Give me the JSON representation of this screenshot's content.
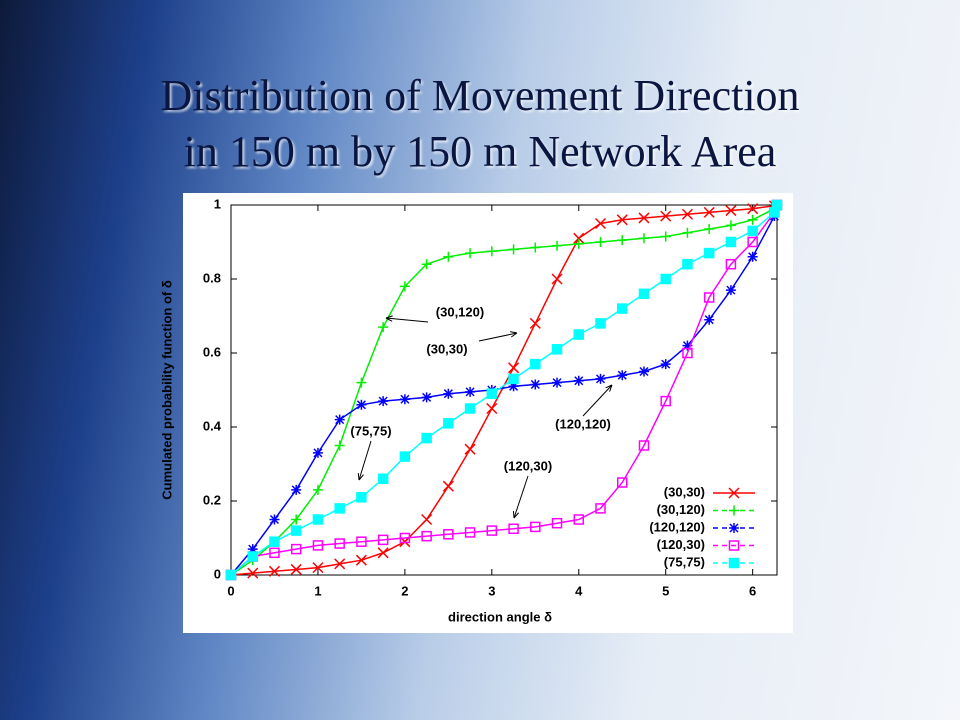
{
  "chart_data": {
    "type": "line",
    "title_lines": [
      "Distribution of Movement Direction",
      "in 150 m by 150 m Network Area"
    ],
    "x_label": "direction angle δ",
    "y_label": "Cumulated probability function of δ",
    "x": [
      0,
      0.25,
      0.5,
      0.75,
      1,
      1.25,
      1.5,
      1.75,
      2,
      2.25,
      2.5,
      2.75,
      3,
      3.25,
      3.5,
      3.75,
      4,
      4.25,
      4.5,
      4.75,
      5,
      5.25,
      5.5,
      5.75,
      6,
      6.25,
      6.28
    ],
    "xlim": [
      0,
      6.28
    ],
    "xticks": [
      0,
      1,
      2,
      3,
      4,
      5,
      6
    ],
    "ylim": [
      0,
      1
    ],
    "yticks": [
      0,
      0.2,
      0.4,
      0.6,
      0.8,
      1
    ],
    "legend": "lower right",
    "series": [
      {
        "name": "(30,30)",
        "color": "#ff0000",
        "marker": "x",
        "values": [
          0,
          0.005,
          0.01,
          0.015,
          0.02,
          0.03,
          0.04,
          0.06,
          0.09,
          0.15,
          0.24,
          0.34,
          0.45,
          0.56,
          0.68,
          0.8,
          0.91,
          0.95,
          0.96,
          0.965,
          0.97,
          0.975,
          0.98,
          0.985,
          0.99,
          0.998,
          1
        ]
      },
      {
        "name": "(30,120)",
        "color": "#00ee00",
        "marker": "plus",
        "values": [
          0,
          0.04,
          0.09,
          0.15,
          0.23,
          0.35,
          0.52,
          0.67,
          0.78,
          0.84,
          0.86,
          0.87,
          0.875,
          0.88,
          0.885,
          0.89,
          0.895,
          0.9,
          0.905,
          0.91,
          0.915,
          0.925,
          0.935,
          0.945,
          0.96,
          0.99,
          1
        ]
      },
      {
        "name": "(120,120)",
        "color": "#0000ff",
        "marker": "star",
        "values": [
          0,
          0.07,
          0.15,
          0.23,
          0.33,
          0.42,
          0.46,
          0.47,
          0.475,
          0.48,
          0.49,
          0.495,
          0.5,
          0.51,
          0.515,
          0.52,
          0.525,
          0.53,
          0.54,
          0.55,
          0.57,
          0.62,
          0.69,
          0.77,
          0.86,
          0.97,
          1
        ]
      },
      {
        "name": "(120,30)",
        "color": "#ff00ff",
        "marker": "square-open",
        "values": [
          0,
          0.05,
          0.06,
          0.07,
          0.08,
          0.085,
          0.09,
          0.095,
          0.1,
          0.105,
          0.11,
          0.115,
          0.12,
          0.125,
          0.13,
          0.14,
          0.15,
          0.18,
          0.25,
          0.35,
          0.47,
          0.6,
          0.75,
          0.84,
          0.9,
          0.98,
          1
        ]
      },
      {
        "name": "(75,75)",
        "color": "#00ffff",
        "marker": "square",
        "values": [
          0,
          0.05,
          0.09,
          0.12,
          0.15,
          0.18,
          0.21,
          0.26,
          0.32,
          0.37,
          0.41,
          0.45,
          0.49,
          0.53,
          0.57,
          0.61,
          0.65,
          0.68,
          0.72,
          0.76,
          0.8,
          0.84,
          0.87,
          0.9,
          0.93,
          0.98,
          1
        ]
      }
    ],
    "annotations": [
      "(30,120)",
      "(30,30)",
      "(75,75)",
      "(120,120)",
      "(120,30)"
    ]
  }
}
